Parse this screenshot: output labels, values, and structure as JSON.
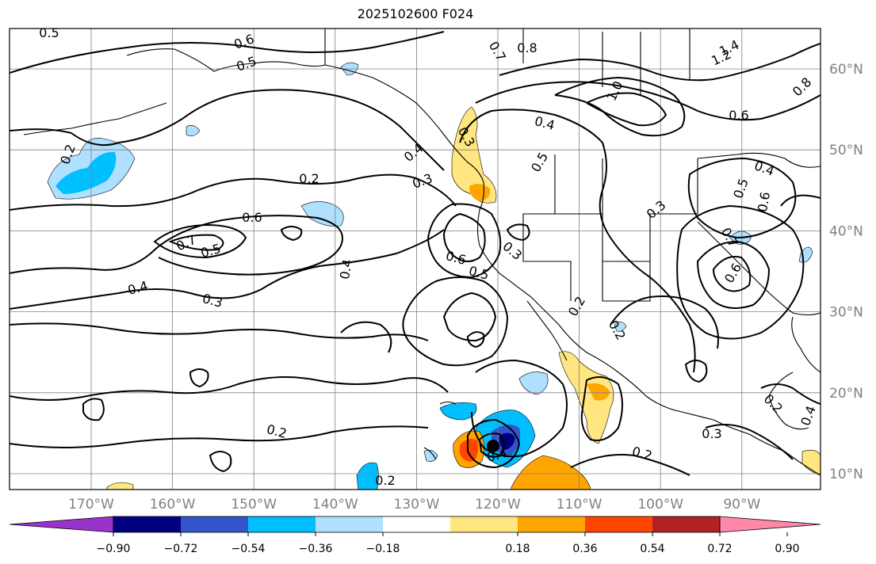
{
  "title": "2025102600 F024",
  "map": {
    "lat_labels": [
      {
        "text": "60°N",
        "lat": 60
      },
      {
        "text": "50°N",
        "lat": 50
      },
      {
        "text": "40°N",
        "lat": 40
      },
      {
        "text": "30°N",
        "lat": 30
      },
      {
        "text": "20°N",
        "lat": 20
      },
      {
        "text": "10°N",
        "lat": 10
      }
    ],
    "lon_labels": [
      {
        "text": "170°W",
        "lon": -170
      },
      {
        "text": "160°W",
        "lon": -160
      },
      {
        "text": "150°W",
        "lon": -150
      },
      {
        "text": "140°W",
        "lon": -140
      },
      {
        "text": "130°W",
        "lon": -130
      },
      {
        "text": "120°W",
        "lon": -120
      },
      {
        "text": "110°W",
        "lon": -110
      },
      {
        "text": "100°W",
        "lon": -100
      },
      {
        "text": "90°W",
        "lon": -90
      }
    ],
    "contour_labels": [
      "0.5",
      "0.6",
      "0.5",
      "0.7",
      "0.8",
      "1.4",
      "1.2",
      "1.0",
      "0.8",
      "0.6",
      "0.4",
      "0.3",
      "0.2",
      "0.4",
      "0.3",
      "0.2",
      "0.6",
      "0.7",
      "0.5",
      "0.4",
      "0.3",
      "0.6",
      "0.5",
      "0.3",
      "0.4",
      "0.5",
      "0.3",
      "0.4",
      "0.5",
      "0.6",
      "0.7",
      "0.6",
      "0.2",
      "0.2",
      "0.2",
      "0.4",
      "0.2",
      "0.2",
      "0.3",
      "0.2",
      "0.4"
    ]
  },
  "colorbar": {
    "colors": [
      "#9933cc",
      "#000080",
      "#3355cc",
      "#00bfff",
      "#b0e0ff",
      "#ffffff",
      "#ffe680",
      "#ffa500",
      "#ff4500",
      "#b22222",
      "#ff88aa"
    ],
    "ticks": [
      "−0.90",
      "−0.72",
      "−0.54",
      "−0.36",
      "−0.18",
      "0.18",
      "0.36",
      "0.54",
      "0.72",
      "0.90"
    ]
  }
}
